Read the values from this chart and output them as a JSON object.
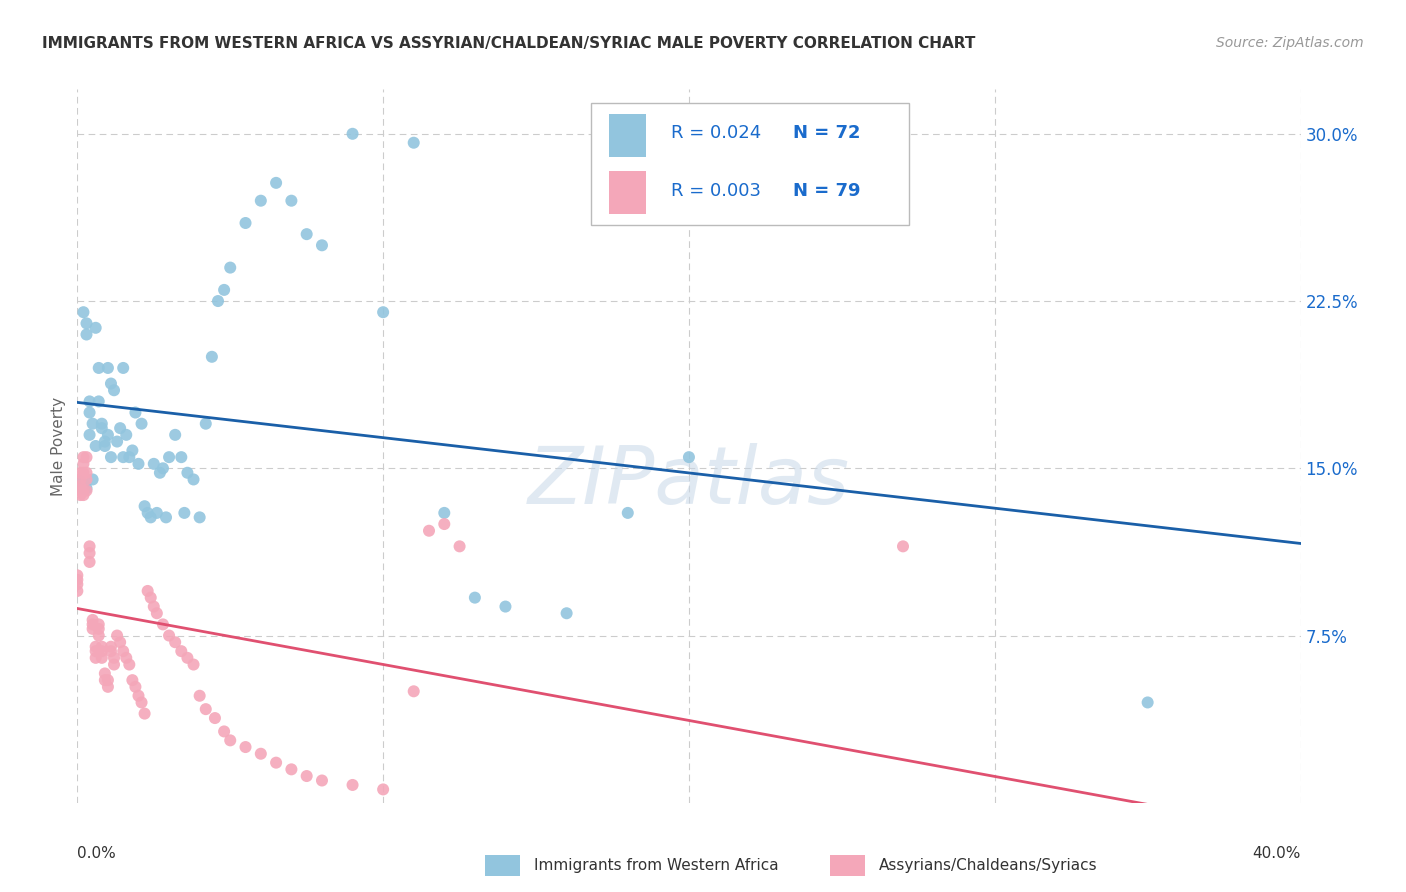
{
  "title": "IMMIGRANTS FROM WESTERN AFRICA VS ASSYRIAN/CHALDEAN/SYRIAC MALE POVERTY CORRELATION CHART",
  "source": "Source: ZipAtlas.com",
  "ylabel": "Male Poverty",
  "watermark": "ZIPatlas",
  "blue_color": "#92c5de",
  "pink_color": "#f4a7b9",
  "line_blue": "#1a5fa8",
  "line_pink": "#e05070",
  "text_blue": "#1a6bcc",
  "text_dark": "#333333",
  "grid_color": "#cccccc",
  "background_color": "#ffffff",
  "xlim": [
    0.0,
    0.4
  ],
  "ylim": [
    0.0,
    0.32
  ],
  "yticks": [
    0.075,
    0.15,
    0.225,
    0.3
  ],
  "ytick_labels": [
    "7.5%",
    "15.0%",
    "22.5%",
    "30.0%"
  ],
  "xtick_positions": [
    0.0,
    0.1,
    0.2,
    0.3,
    0.4
  ],
  "legend_r1": "R = 0.024",
  "legend_n1": "N = 72",
  "legend_r2": "R = 0.003",
  "legend_n2": "N = 79",
  "blue_x": [
    0.001,
    0.001,
    0.002,
    0.002,
    0.002,
    0.003,
    0.003,
    0.003,
    0.004,
    0.004,
    0.004,
    0.005,
    0.005,
    0.006,
    0.006,
    0.007,
    0.007,
    0.008,
    0.008,
    0.009,
    0.009,
    0.01,
    0.01,
    0.011,
    0.011,
    0.012,
    0.013,
    0.014,
    0.015,
    0.015,
    0.016,
    0.017,
    0.018,
    0.019,
    0.02,
    0.021,
    0.022,
    0.023,
    0.024,
    0.025,
    0.026,
    0.027,
    0.028,
    0.029,
    0.03,
    0.032,
    0.034,
    0.035,
    0.036,
    0.038,
    0.04,
    0.042,
    0.044,
    0.046,
    0.048,
    0.05,
    0.055,
    0.06,
    0.065,
    0.07,
    0.075,
    0.08,
    0.09,
    0.1,
    0.11,
    0.12,
    0.13,
    0.14,
    0.16,
    0.18,
    0.2,
    0.35
  ],
  "blue_y": [
    0.142,
    0.144,
    0.141,
    0.143,
    0.22,
    0.141,
    0.21,
    0.215,
    0.175,
    0.18,
    0.165,
    0.17,
    0.145,
    0.16,
    0.213,
    0.195,
    0.18,
    0.17,
    0.168,
    0.16,
    0.162,
    0.165,
    0.195,
    0.155,
    0.188,
    0.185,
    0.162,
    0.168,
    0.155,
    0.195,
    0.165,
    0.155,
    0.158,
    0.175,
    0.152,
    0.17,
    0.133,
    0.13,
    0.128,
    0.152,
    0.13,
    0.148,
    0.15,
    0.128,
    0.155,
    0.165,
    0.155,
    0.13,
    0.148,
    0.145,
    0.128,
    0.17,
    0.2,
    0.225,
    0.23,
    0.24,
    0.26,
    0.27,
    0.278,
    0.27,
    0.255,
    0.25,
    0.3,
    0.22,
    0.296,
    0.13,
    0.092,
    0.088,
    0.085,
    0.13,
    0.155,
    0.045
  ],
  "pink_x": [
    0.0,
    0.0,
    0.0,
    0.0,
    0.001,
    0.001,
    0.001,
    0.001,
    0.001,
    0.002,
    0.002,
    0.002,
    0.002,
    0.002,
    0.003,
    0.003,
    0.003,
    0.003,
    0.004,
    0.004,
    0.004,
    0.005,
    0.005,
    0.005,
    0.006,
    0.006,
    0.006,
    0.007,
    0.007,
    0.007,
    0.008,
    0.008,
    0.008,
    0.009,
    0.009,
    0.01,
    0.01,
    0.011,
    0.011,
    0.012,
    0.012,
    0.013,
    0.014,
    0.015,
    0.016,
    0.017,
    0.018,
    0.019,
    0.02,
    0.021,
    0.022,
    0.023,
    0.024,
    0.025,
    0.026,
    0.028,
    0.03,
    0.032,
    0.034,
    0.036,
    0.038,
    0.04,
    0.042,
    0.045,
    0.048,
    0.05,
    0.055,
    0.06,
    0.065,
    0.07,
    0.075,
    0.08,
    0.09,
    0.1,
    0.11,
    0.115,
    0.12,
    0.125,
    0.27
  ],
  "pink_y": [
    0.095,
    0.098,
    0.1,
    0.102,
    0.14,
    0.142,
    0.138,
    0.145,
    0.148,
    0.138,
    0.14,
    0.148,
    0.152,
    0.155,
    0.14,
    0.145,
    0.148,
    0.155,
    0.108,
    0.112,
    0.115,
    0.078,
    0.08,
    0.082,
    0.065,
    0.068,
    0.07,
    0.075,
    0.078,
    0.08,
    0.065,
    0.068,
    0.07,
    0.055,
    0.058,
    0.052,
    0.055,
    0.068,
    0.07,
    0.062,
    0.065,
    0.075,
    0.072,
    0.068,
    0.065,
    0.062,
    0.055,
    0.052,
    0.048,
    0.045,
    0.04,
    0.095,
    0.092,
    0.088,
    0.085,
    0.08,
    0.075,
    0.072,
    0.068,
    0.065,
    0.062,
    0.048,
    0.042,
    0.038,
    0.032,
    0.028,
    0.025,
    0.022,
    0.018,
    0.015,
    0.012,
    0.01,
    0.008,
    0.006,
    0.05,
    0.122,
    0.125,
    0.115,
    0.115
  ]
}
